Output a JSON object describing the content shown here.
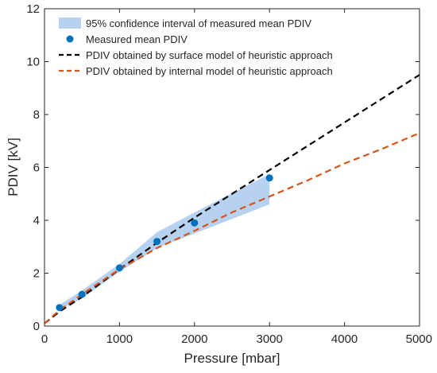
{
  "chart_data": {
    "type": "line",
    "title": "",
    "xlabel": "Pressure [mbar]",
    "ylabel": "PDIV [kV]",
    "xlim": [
      0,
      5000
    ],
    "ylim": [
      0,
      12
    ],
    "xticks": [
      0,
      1000,
      2000,
      3000,
      4000,
      5000
    ],
    "yticks": [
      0,
      2,
      4,
      6,
      8,
      10,
      12
    ],
    "xtick_labels": [
      "0",
      "1000",
      "2000",
      "3000",
      "4000",
      "5000"
    ],
    "ytick_labels": [
      "0",
      "2",
      "4",
      "6",
      "8",
      "10",
      "12"
    ],
    "grid": false,
    "legend_position": "top-left",
    "confidence_band": {
      "name": "95% confidence interval of measured mean PDIV",
      "color": "#b7d1f0",
      "x": [
        200,
        500,
        1000,
        1500,
        2000,
        3000
      ],
      "upper": [
        0.8,
        1.35,
        2.35,
        3.55,
        4.3,
        5.75
      ],
      "lower": [
        0.6,
        1.05,
        2.05,
        2.95,
        3.5,
        4.6
      ]
    },
    "measured": {
      "name": "Measured mean PDIV",
      "color": "#0072bd",
      "x": [
        200,
        500,
        1000,
        1500,
        2000,
        3000
      ],
      "y": [
        0.7,
        1.2,
        2.2,
        3.2,
        3.9,
        5.6
      ]
    },
    "series": [
      {
        "name": "PDIV obtained by surface model of heuristic approach",
        "color": "#000000",
        "x": [
          0,
          200,
          500,
          1000,
          1500,
          2000,
          2500,
          3000,
          3500,
          4000,
          4500,
          5000
        ],
        "y": [
          0.1,
          0.55,
          1.1,
          2.15,
          3.15,
          4.1,
          5.0,
          5.9,
          6.8,
          7.7,
          8.6,
          9.5
        ]
      },
      {
        "name": "PDIV obtained by internal model of heuristic approach",
        "color": "#d95319",
        "x": [
          0,
          200,
          500,
          1000,
          1500,
          2000,
          2500,
          3000,
          3500,
          4000,
          4500,
          5000
        ],
        "y": [
          0.1,
          0.6,
          1.2,
          2.15,
          2.95,
          3.6,
          4.3,
          4.9,
          5.5,
          6.15,
          6.7,
          7.3
        ]
      }
    ]
  }
}
